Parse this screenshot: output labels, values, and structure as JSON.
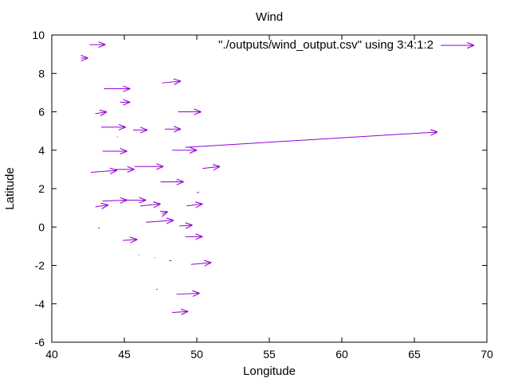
{
  "chart_data": {
    "type": "vector-field",
    "title": "Wind",
    "xlabel": "Longitude",
    "ylabel": "Latitude",
    "xlim": [
      40,
      70
    ],
    "ylim": [
      -6,
      10
    ],
    "x_ticks": [
      40,
      45,
      50,
      55,
      60,
      65,
      70
    ],
    "y_ticks": [
      -6,
      -4,
      -2,
      0,
      2,
      4,
      6,
      8,
      10
    ],
    "grid": false,
    "legend_position": "top-right",
    "series": [
      {
        "name": "\"./outputs/wind_output.csv\" using 3:4:1:2",
        "color": "#9400d3",
        "vectors": [
          {
            "x": 42.0,
            "y": 8.8,
            "dx": 0.5,
            "dy": 0.0
          },
          {
            "x": 42.6,
            "y": 9.5,
            "dx": 1.1,
            "dy": 0.0
          },
          {
            "x": 43.6,
            "y": 7.2,
            "dx": 1.8,
            "dy": 0.0
          },
          {
            "x": 47.6,
            "y": 7.5,
            "dx": 1.3,
            "dy": 0.1
          },
          {
            "x": 44.7,
            "y": 6.5,
            "dx": 0.7,
            "dy": 0.0
          },
          {
            "x": 43.0,
            "y": 5.9,
            "dx": 0.8,
            "dy": 0.1
          },
          {
            "x": 48.7,
            "y": 6.0,
            "dx": 1.6,
            "dy": 0.0
          },
          {
            "x": 43.4,
            "y": 5.2,
            "dx": 1.7,
            "dy": 0.0
          },
          {
            "x": 45.6,
            "y": 5.05,
            "dx": 1.0,
            "dy": 0.0
          },
          {
            "x": 47.8,
            "y": 5.1,
            "dx": 1.1,
            "dy": 0.0
          },
          {
            "x": 44.5,
            "y": 4.7,
            "dx": 0.05,
            "dy": 0.0
          },
          {
            "x": 49.2,
            "y": 4.15,
            "dx": 17.4,
            "dy": 0.8
          },
          {
            "x": 43.5,
            "y": 3.95,
            "dx": 1.7,
            "dy": 0.0
          },
          {
            "x": 48.3,
            "y": 4.0,
            "dx": 1.7,
            "dy": 0.0
          },
          {
            "x": 42.7,
            "y": 2.85,
            "dx": 1.8,
            "dy": 0.1
          },
          {
            "x": 44.3,
            "y": 3.0,
            "dx": 1.4,
            "dy": 0.0
          },
          {
            "x": 45.7,
            "y": 3.15,
            "dx": 2.0,
            "dy": 0.0
          },
          {
            "x": 50.4,
            "y": 3.05,
            "dx": 1.2,
            "dy": 0.1
          },
          {
            "x": 47.5,
            "y": 2.35,
            "dx": 1.6,
            "dy": 0.0
          },
          {
            "x": 48.6,
            "y": 2.4,
            "dx": 0.05,
            "dy": 0.0
          },
          {
            "x": 50.0,
            "y": 1.8,
            "dx": 0.15,
            "dy": 0.0
          },
          {
            "x": 43.5,
            "y": 1.35,
            "dx": 1.7,
            "dy": 0.05
          },
          {
            "x": 44.8,
            "y": 1.4,
            "dx": 1.7,
            "dy": 0.0
          },
          {
            "x": 46.1,
            "y": 1.1,
            "dx": 1.4,
            "dy": 0.1
          },
          {
            "x": 49.3,
            "y": 1.1,
            "dx": 1.1,
            "dy": 0.1
          },
          {
            "x": 43.0,
            "y": 1.05,
            "dx": 0.9,
            "dy": 0.1
          },
          {
            "x": 47.6,
            "y": 0.7,
            "dx": 0.4,
            "dy": 0.1
          },
          {
            "x": 46.5,
            "y": 0.25,
            "dx": 1.9,
            "dy": 0.1
          },
          {
            "x": 48.8,
            "y": 0.05,
            "dx": 0.9,
            "dy": 0.05
          },
          {
            "x": 43.2,
            "y": -0.05,
            "dx": 0.1,
            "dy": 0.0
          },
          {
            "x": 49.2,
            "y": -0.5,
            "dx": 1.2,
            "dy": 0.0
          },
          {
            "x": 44.9,
            "y": -0.7,
            "dx": 1.0,
            "dy": 0.05
          },
          {
            "x": 46.0,
            "y": -1.45,
            "dx": 0.05,
            "dy": 0.0
          },
          {
            "x": 47.1,
            "y": -1.6,
            "dx": 0.05,
            "dy": 0.0
          },
          {
            "x": 48.1,
            "y": -1.75,
            "dx": 0.15,
            "dy": 0.0
          },
          {
            "x": 49.6,
            "y": -1.95,
            "dx": 1.4,
            "dy": 0.1
          },
          {
            "x": 47.2,
            "y": -3.25,
            "dx": 0.1,
            "dy": 0.0
          },
          {
            "x": 48.6,
            "y": -3.5,
            "dx": 1.6,
            "dy": 0.05
          },
          {
            "x": 48.3,
            "y": -4.45,
            "dx": 1.1,
            "dy": 0.05
          }
        ]
      }
    ]
  }
}
